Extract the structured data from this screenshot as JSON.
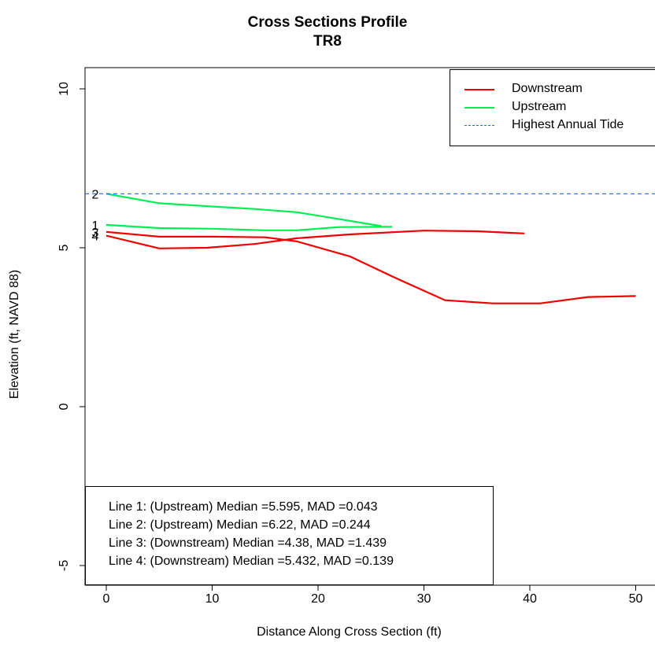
{
  "chart_data": {
    "type": "line",
    "title": "Cross Sections Profile",
    "subtitle": "TR8",
    "xlabel": "Distance Along Cross Section (ft)",
    "ylabel": "Elevation (ft, NAVD 88)",
    "xlim": [
      -2,
      51
    ],
    "ylim": [
      -7,
      10.5
    ],
    "xticks": [
      0,
      10,
      20,
      30,
      40,
      50
    ],
    "yticks": [
      -5,
      0,
      5,
      10
    ],
    "grid": false,
    "legend_position": "top-right",
    "series": [
      {
        "name": "Upstream",
        "line_id": "1",
        "color": "#00ee55",
        "style": "solid",
        "x": [
          0,
          5,
          10,
          15,
          18,
          22,
          27
        ],
        "y": [
          5.72,
          5.62,
          5.6,
          5.55,
          5.55,
          5.65,
          5.66
        ]
      },
      {
        "name": "Upstream",
        "line_id": "2",
        "color": "#00ee55",
        "style": "solid",
        "x": [
          0,
          5,
          10,
          14,
          18,
          22,
          26
        ],
        "y": [
          6.7,
          6.4,
          6.3,
          6.22,
          6.12,
          5.9,
          5.68
        ]
      },
      {
        "name": "Downstream",
        "line_id": "3",
        "color": "#ee0000",
        "style": "solid",
        "x": [
          0,
          5,
          10,
          15,
          18,
          23,
          27,
          32,
          36.5,
          41,
          45.5,
          50
        ],
        "y": [
          5.5,
          5.35,
          5.35,
          5.33,
          5.2,
          4.73,
          4.1,
          3.35,
          3.25,
          3.25,
          3.45,
          3.48
        ]
      },
      {
        "name": "Downstream",
        "line_id": "4",
        "color": "#ee0000",
        "style": "solid",
        "x": [
          0,
          5,
          9.5,
          14,
          18,
          23,
          30,
          35,
          39.5
        ],
        "y": [
          5.38,
          4.98,
          5.0,
          5.12,
          5.3,
          5.42,
          5.54,
          5.52,
          5.45
        ]
      },
      {
        "name": "Highest Annual Tide",
        "color": "#1c6fd9",
        "style": "dashed",
        "y_constant": 6.7
      }
    ],
    "line_labels": [
      {
        "text": "2",
        "x": 0,
        "y": 6.7
      },
      {
        "text": "1",
        "x": 0,
        "y": 5.72
      },
      {
        "text": "4",
        "x": 0,
        "y": 5.38
      },
      {
        "text": "3",
        "x": 0,
        "y": 5.5
      }
    ],
    "legend": [
      {
        "label": "Downstream",
        "color": "#ee0000",
        "style": "solid"
      },
      {
        "label": "Upstream",
        "color": "#00ee55",
        "style": "solid"
      },
      {
        "label": "Highest Annual Tide",
        "color": "#1c6fd9",
        "style": "dashed"
      }
    ],
    "stats": [
      "Line 1: (Upstream) Median =5.595, MAD =0.043",
      "Line 2: (Upstream) Median =6.22, MAD =0.244",
      "Line 3: (Downstream) Median =4.38, MAD =1.439",
      "Line 4: (Downstream) Median =5.432, MAD =0.139"
    ]
  }
}
